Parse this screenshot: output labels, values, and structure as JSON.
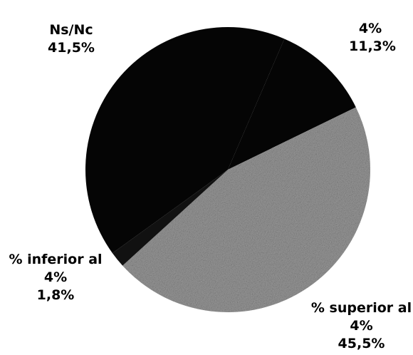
{
  "chart_data": {
    "type": "pie",
    "categories": [
      "4%",
      "% superior al 4%",
      "% inferior al 4%",
      "Ns/Nc"
    ],
    "values": [
      11.3,
      45.5,
      1.8,
      41.5
    ],
    "value_labels": [
      "11,3%",
      "45,5%",
      "1,8%",
      "41,5%"
    ],
    "colors": [
      "#050505",
      "#9b9b9b",
      "#111111",
      "#050505"
    ]
  }
}
